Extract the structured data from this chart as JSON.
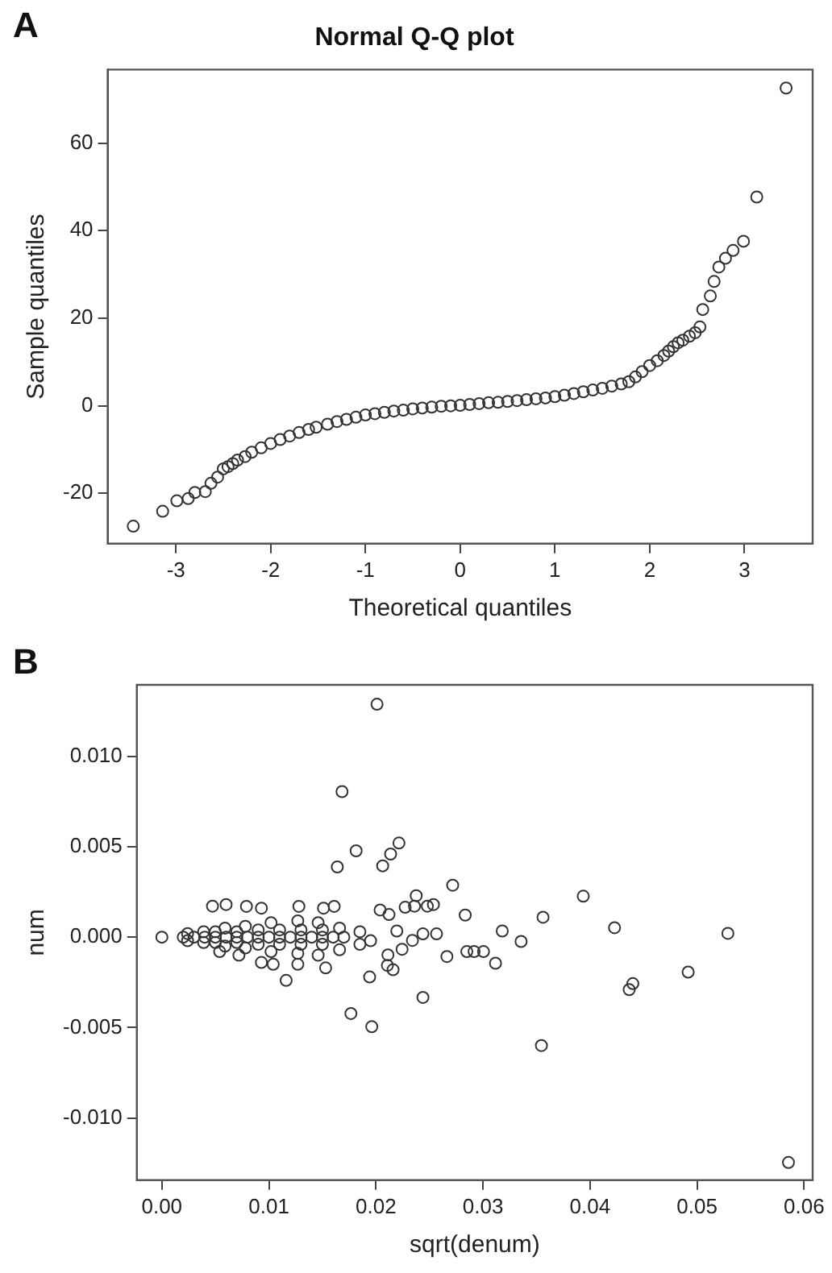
{
  "chart_data": [
    {
      "type": "scatter",
      "title": "Normal Q-Q plot",
      "xlabel": "Theoretical quantiles",
      "ylabel": "Sample quantiles",
      "annotations": [
        "A"
      ],
      "xlim": [
        -3.72,
        3.72
      ],
      "ylim": [
        -31.5,
        76.8
      ],
      "xticks": [
        -3,
        -2,
        -1,
        0,
        1,
        2,
        3
      ],
      "yticks": [
        -20,
        0,
        20,
        40,
        60
      ],
      "grid": false,
      "legend": false,
      "marker": "circle",
      "series": [
        {
          "color": "#333333",
          "x": [
            -3.45,
            -3.14,
            -2.99,
            -2.87,
            -2.8,
            -2.69,
            -2.63,
            -2.56,
            -2.5,
            -2.45,
            -2.4,
            -2.35,
            -2.27,
            -2.2,
            -2.1,
            -2.0,
            -1.9,
            -1.8,
            -1.7,
            -1.6,
            -1.52,
            -1.4,
            -1.3,
            -1.2,
            -1.1,
            -1.0,
            -0.9,
            -0.8,
            -0.7,
            -0.6,
            -0.5,
            -0.4,
            -0.3,
            -0.2,
            -0.1,
            0.0,
            0.1,
            0.2,
            0.3,
            0.4,
            0.5,
            0.6,
            0.7,
            0.8,
            0.9,
            1.0,
            1.1,
            1.2,
            1.3,
            1.4,
            1.5,
            1.6,
            1.7,
            1.78,
            1.85,
            1.92,
            2.0,
            2.08,
            2.15,
            2.2,
            2.25,
            2.3,
            2.35,
            2.42,
            2.48,
            2.53,
            2.56,
            2.64,
            2.68,
            2.73,
            2.8,
            2.88,
            2.99,
            3.13,
            3.44
          ],
          "values": [
            -27.5,
            -24.1,
            -21.7,
            -21.2,
            -19.8,
            -19.6,
            -17.7,
            -16.3,
            -14.4,
            -13.9,
            -13.2,
            -12.4,
            -11.6,
            -10.6,
            -9.6,
            -8.6,
            -7.7,
            -6.9,
            -6.1,
            -5.4,
            -4.9,
            -4.2,
            -3.6,
            -3.1,
            -2.6,
            -2.1,
            -1.8,
            -1.5,
            -1.2,
            -1.0,
            -0.7,
            -0.5,
            -0.3,
            -0.1,
            0.0,
            0.1,
            0.3,
            0.5,
            0.7,
            0.8,
            1.0,
            1.2,
            1.4,
            1.6,
            1.8,
            2.1,
            2.4,
            2.8,
            3.2,
            3.6,
            4.0,
            4.5,
            5.0,
            5.5,
            6.6,
            7.8,
            9.2,
            10.3,
            11.5,
            12.5,
            13.5,
            14.4,
            15.0,
            15.9,
            16.7,
            18.0,
            22.0,
            25.1,
            28.4,
            31.7,
            33.7,
            35.5,
            37.6,
            47.7,
            72.6
          ]
        }
      ]
    },
    {
      "type": "scatter",
      "xlabel": "sqrt(denum)",
      "ylabel": "num",
      "annotations": [
        "B"
      ],
      "xlim": [
        -0.00234,
        0.0608
      ],
      "ylim": [
        -0.01343,
        0.01394
      ],
      "xticks": [
        {
          "value": 0,
          "label": "0.00"
        },
        {
          "value": 0.01,
          "label": "0.01"
        },
        {
          "value": 0.02,
          "label": "0.02"
        },
        {
          "value": 0.03,
          "label": "0.03"
        },
        {
          "value": 0.04,
          "label": "0.04"
        },
        {
          "value": 0.05,
          "label": "0.05"
        },
        {
          "value": 0.06,
          "label": "0.06"
        }
      ],
      "yticks": [
        {
          "value": -0.01,
          "label": "-0.010"
        },
        {
          "value": -0.005,
          "label": "-0.005"
        },
        {
          "value": 0,
          "label": "0.000"
        },
        {
          "value": 0.005,
          "label": "0.005"
        },
        {
          "value": 0.01,
          "label": "0.010"
        }
      ],
      "grid": false,
      "legend": false,
      "marker": "circle",
      "series": [
        {
          "color": "#333333",
          "x": [
            0.0201,
            0.01683,
            0.01815,
            0.01639,
            0.02215,
            0.02137,
            0.02063,
            0.02717,
            0.02376,
            0.03937,
            0.03561,
            0.04229,
            0.05288,
            0.02834,
            0.0318,
            0.03356,
            0.02663,
            0.02849,
            0.02917,
            0.03005,
            0.03117,
            0.04917,
            0.04366,
            0.044,
            0.03546,
            0.02439,
            0.01766,
            0.01961,
            0.01941,
            0.01161,
            0.05854,
            0,
            0.02273,
            0.0236,
            0.0248,
            0.02537,
            0.02039,
            0.02122,
            0.02112,
            0.0216,
            0.02107,
            0.02341,
            0.02439,
            0.02566,
            0.02244,
            0.02195,
            0.00473,
            0.006,
            0.0079,
            0.0093,
            0.0128,
            0.0151,
            0.0161,
            0.0093,
            0.0104,
            0.0127,
            0.0153,
            0.0072,
            0.0054,
            0.002,
            0.0024,
            0.0024,
            0.0039,
            0.0039,
            0.0059,
            0.0059,
            0.0078,
            0.0078,
            0.0102,
            0.0102,
            0.0127,
            0.0127,
            0.0146,
            0.0146,
            0.0166,
            0.0166,
            0.0185,
            0.0185,
            0.0195,
            0.003,
            0.004,
            0.005,
            0.006,
            0.007,
            0.008,
            0.009,
            0.01,
            0.011,
            0.012,
            0.013,
            0.014,
            0.015,
            0.016,
            0.017,
            0.005,
            0.007,
            0.009,
            0.011,
            0.013,
            0.015,
            0.005,
            0.007,
            0.009,
            0.011,
            0.013,
            0.015
          ],
          "values": [
            0.01287,
            0.00804,
            0.00477,
            0.00388,
            0.0052,
            0.00459,
            0.00394,
            0.00287,
            0.00229,
            0.00226,
            0.0011,
            0.00052,
            0.00021,
            0.00122,
            0.00034,
            -0.00024,
            -0.00107,
            -0.0008,
            -0.0008,
            -0.0008,
            -0.00144,
            -0.00193,
            -0.0029,
            -0.00257,
            -0.00599,
            -0.00333,
            -0.00422,
            -0.00495,
            -0.0022,
            -0.00239,
            -0.01245,
            0,
            0.00165,
            0.00171,
            0.00171,
            0.0018,
            0.0015,
            0.00125,
            -0.00098,
            -0.0018,
            -0.00156,
            -0.00018,
            0.00018,
            0.00018,
            -0.00067,
            0.00034,
            0.00171,
            0.0018,
            0.0017,
            0.0016,
            0.0017,
            0.0016,
            0.0017,
            -0.0014,
            -0.0015,
            -0.0015,
            -0.0017,
            -0.001,
            -0.0008,
            0,
            0.0002,
            -0.0002,
            0.0003,
            -0.0003,
            0.0005,
            -0.0005,
            0.0006,
            -0.0006,
            0.0008,
            -0.0008,
            0.0009,
            -0.0009,
            0.0008,
            -0.001,
            0.0005,
            -0.0007,
            0.0003,
            -0.0004,
            -0.0002,
            0,
            0,
            0,
            0,
            0,
            0,
            0,
            0,
            0,
            0,
            0,
            0,
            0,
            0,
            0,
            0.0003,
            0.0003,
            0.0004,
            0.0004,
            0.0004,
            0.0004,
            -0.0003,
            -0.0003,
            -0.0004,
            -0.0004,
            -0.0004,
            -0.0004
          ]
        }
      ]
    }
  ]
}
